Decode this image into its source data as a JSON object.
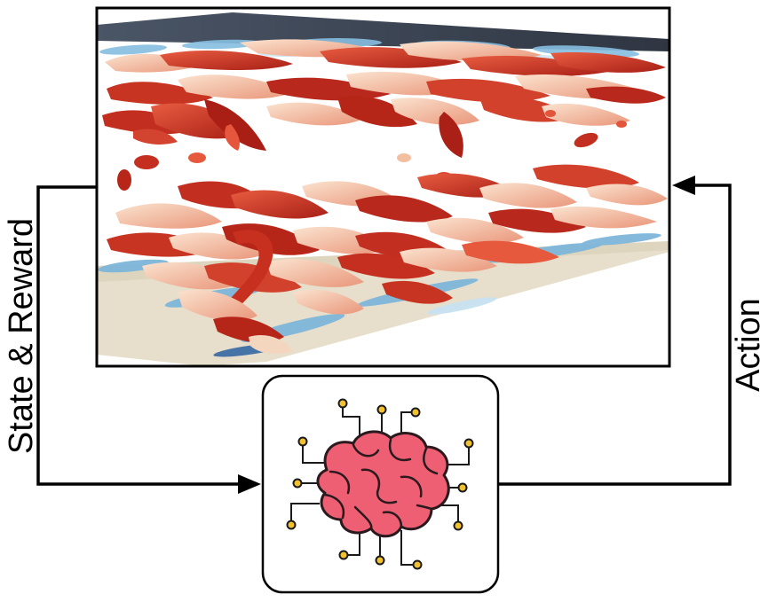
{
  "labels": {
    "state_reward": "State & Reward",
    "action": "Action"
  },
  "icons": {
    "environment": "turbulent-channel-flow-vortex-visualization",
    "agent": "brain-circuit-icon"
  },
  "colors": {
    "frame": "#000000",
    "background": "#ffffff",
    "vortex_dark_red": "#b8281c",
    "vortex_red": "#d94a34",
    "vortex_light": "#f3c2a4",
    "vortex_cream": "#f4e6d4",
    "vortex_blue": "#7fb6da",
    "wall_top": "#3a4352",
    "wall_bottom": "#e6ddc8",
    "brain_fill": "#ef5f74",
    "brain_outline": "#2a1a1e",
    "circuit_node": "#f2c12e"
  }
}
